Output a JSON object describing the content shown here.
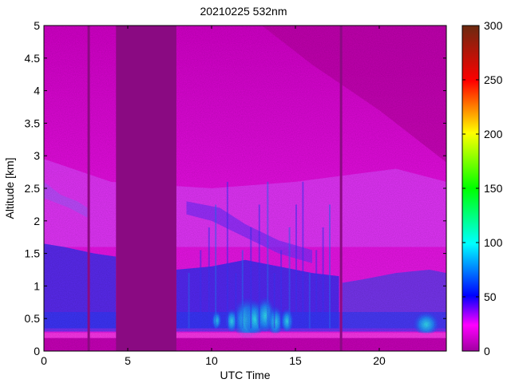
{
  "chart_data": {
    "type": "heatmap",
    "title": "20210225 532nm",
    "xlabel": "UTC Time",
    "ylabel": "Altitude [km]",
    "xlim": [
      0,
      24
    ],
    "ylim": [
      0,
      5
    ],
    "x_ticks": [
      0,
      5,
      10,
      15,
      20
    ],
    "y_ticks": [
      0,
      0.5,
      1,
      1.5,
      2,
      2.5,
      3,
      3.5,
      4,
      4.5,
      5
    ],
    "colorbar": {
      "ticks": [
        0,
        50,
        100,
        150,
        200,
        250,
        300
      ],
      "clim": [
        0,
        300
      ],
      "colormap": "hsv-like (magenta → blue → cyan → green → yellow → red → dark red)"
    },
    "data_gap": {
      "x_start": 4.3,
      "x_end": 7.9
    },
    "grid": false,
    "legend": "none"
  }
}
